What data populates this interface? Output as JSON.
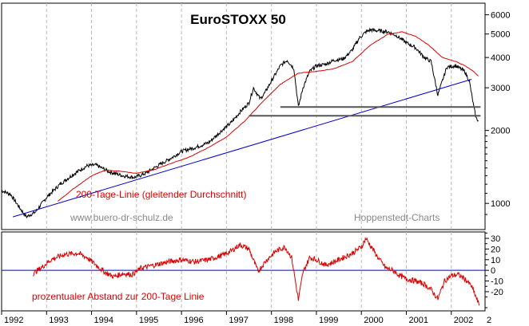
{
  "chart_data": [
    {
      "type": "line",
      "title": "EuroSTOXX 50",
      "yscale": "log",
      "ylim": [
        780,
        6700
      ],
      "xlim": [
        1992.0,
        2002.75
      ],
      "yticks": [
        {
          "value": 6000,
          "label": "6000"
        },
        {
          "value": 5000,
          "label": "5000"
        },
        {
          "value": 4000,
          "label": "4000"
        },
        {
          "value": 3000,
          "label": "3000"
        },
        {
          "value": 2000,
          "label": "2000"
        },
        {
          "value": 1000,
          "label": "1000"
        }
      ],
      "annotations": {
        "ma_label": "200-Tage-Linie (gleitender Durchschnitt)",
        "website": "www.buero-dr-schulz.de",
        "source": "Hoppenstedt-Charts"
      },
      "series": [
        {
          "name": "EuroSTOXX 50",
          "color": "#000000",
          "x": [
            1992.0,
            1992.2,
            1992.4,
            1992.55,
            1992.75,
            1993.0,
            1993.3,
            1993.6,
            1993.9,
            1994.1,
            1994.4,
            1994.7,
            1994.95,
            1995.2,
            1995.5,
            1995.8,
            1996.0,
            1996.3,
            1996.6,
            1996.9,
            1997.1,
            1997.3,
            1997.5,
            1997.6,
            1997.75,
            1997.85,
            1998.0,
            1998.2,
            1998.35,
            1998.5,
            1998.6,
            1998.7,
            1998.85,
            1999.0,
            1999.2,
            1999.4,
            1999.6,
            1999.8,
            1999.95,
            2000.1,
            2000.2,
            2000.4,
            2000.6,
            2000.8,
            2001.0,
            2001.2,
            2001.4,
            2001.55,
            2001.7,
            2001.9,
            2002.1,
            2002.3,
            2002.4,
            2002.5,
            2002.55,
            2002.6
          ],
          "values": [
            1130,
            1090,
            960,
            880,
            920,
            1060,
            1200,
            1320,
            1430,
            1440,
            1350,
            1300,
            1280,
            1330,
            1440,
            1550,
            1640,
            1700,
            1780,
            2000,
            2150,
            2380,
            2600,
            3000,
            2700,
            2850,
            3200,
            3700,
            3900,
            3600,
            2500,
            3000,
            3500,
            3700,
            3750,
            3900,
            3950,
            4300,
            4800,
            5100,
            5200,
            5150,
            5100,
            4900,
            4600,
            4400,
            4000,
            3850,
            2800,
            3650,
            3700,
            3500,
            3200,
            2500,
            2250,
            2200
          ]
        },
        {
          "name": "200-Tage-Linie",
          "color": "#dd0000",
          "x": [
            1993.25,
            1993.6,
            1994.0,
            1994.3,
            1994.6,
            1995.0,
            1995.4,
            1995.8,
            1996.2,
            1996.6,
            1997.0,
            1997.4,
            1997.8,
            1998.2,
            1998.6,
            1999.0,
            1999.4,
            1999.8,
            2000.2,
            2000.6,
            2000.9,
            2001.2,
            2001.5,
            2001.8,
            2002.1,
            2002.3,
            2002.5,
            2002.6
          ],
          "values": [
            1020,
            1150,
            1300,
            1370,
            1360,
            1330,
            1380,
            1470,
            1560,
            1700,
            1880,
            2180,
            2620,
            3100,
            3450,
            3500,
            3600,
            3850,
            4500,
            5000,
            5100,
            4900,
            4500,
            4000,
            3850,
            3700,
            3500,
            3350
          ]
        },
        {
          "name": "Trendlinie",
          "color": "#0000cc",
          "x": [
            1992.25,
            2002.45
          ],
          "values": [
            880,
            3250
          ]
        },
        {
          "name": "Unterstützung 1",
          "color": "#555555",
          "x": [
            1998.2,
            2002.65
          ],
          "values": [
            2500,
            2500
          ]
        },
        {
          "name": "Unterstützung 2",
          "color": "#555555",
          "x": [
            1997.5,
            2002.65
          ],
          "values": [
            2300,
            2300
          ]
        }
      ]
    },
    {
      "type": "line",
      "title": "",
      "ylabel": "prozentualer Abstand zur 200-Tage Linie",
      "ylim": [
        -38,
        36
      ],
      "xlim": [
        1992.0,
        2002.75
      ],
      "yticks": [
        {
          "value": 30,
          "label": "30"
        },
        {
          "value": 20,
          "label": "20"
        },
        {
          "value": 10,
          "label": "10"
        },
        {
          "value": 0,
          "label": "0"
        },
        {
          "value": -10,
          "label": "-10"
        },
        {
          "value": -20,
          "label": "-20"
        }
      ],
      "zero_line_color": "#0000cc",
      "series": [
        {
          "name": "prozentualer Abstand",
          "color": "#dd0000",
          "x": [
            1992.7,
            1992.9,
            1993.1,
            1993.4,
            1993.7,
            1993.9,
            1994.1,
            1994.3,
            1994.5,
            1994.7,
            1994.9,
            1995.1,
            1995.4,
            1995.7,
            1996.0,
            1996.3,
            1996.6,
            1996.9,
            1997.1,
            1997.3,
            1997.5,
            1997.7,
            1997.9,
            1998.1,
            1998.3,
            1998.45,
            1998.6,
            1998.7,
            1998.85,
            1999.0,
            1999.2,
            1999.4,
            1999.6,
            1999.8,
            2000.0,
            2000.1,
            2000.25,
            2000.4,
            2000.55,
            2000.7,
            2000.85,
            2001.0,
            2001.2,
            2001.4,
            2001.55,
            2001.7,
            2001.85,
            2002.0,
            2002.15,
            2002.3,
            2002.45,
            2002.55,
            2002.62
          ],
          "values": [
            -3,
            3,
            10,
            15,
            16,
            12,
            5,
            -2,
            -6,
            -3,
            -4,
            2,
            5,
            8,
            10,
            8,
            10,
            14,
            18,
            24,
            20,
            -1,
            10,
            18,
            22,
            12,
            -28,
            -2,
            12,
            10,
            5,
            8,
            12,
            16,
            22,
            30,
            20,
            10,
            2,
            0,
            -5,
            -8,
            -10,
            -13,
            -18,
            -27,
            -10,
            -5,
            -4,
            -8,
            -15,
            -25,
            -33
          ]
        }
      ]
    }
  ],
  "x_axis": {
    "ticks": [
      {
        "value": 1992.0,
        "label": "1992"
      },
      {
        "value": 1993.0,
        "label": "1993"
      },
      {
        "value": 1994.0,
        "label": "1994"
      },
      {
        "value": 1995.0,
        "label": "1995"
      },
      {
        "value": 1996.0,
        "label": "1996"
      },
      {
        "value": 1997.0,
        "label": "1997"
      },
      {
        "value": 1998.0,
        "label": "1998"
      },
      {
        "value": 1999.0,
        "label": "1999"
      },
      {
        "value": 2000.0,
        "label": "2000"
      },
      {
        "value": 2001.0,
        "label": "2001"
      },
      {
        "value": 2002.0,
        "label": "2002"
      }
    ],
    "edge_label": "2"
  }
}
